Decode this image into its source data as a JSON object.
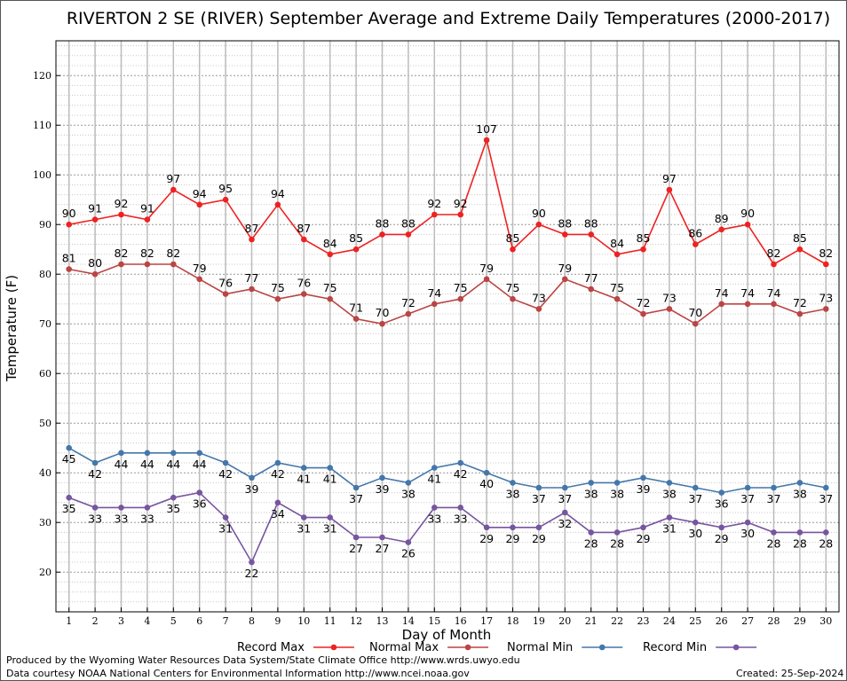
{
  "chart_data": {
    "type": "line",
    "title": "RIVERTON 2 SE (RIVER) September Average and Extreme Daily Temperatures (2000-2017)",
    "xlabel": "Day of Month",
    "ylabel": "Temperature (F)",
    "x": [
      1,
      2,
      3,
      4,
      5,
      6,
      7,
      8,
      9,
      10,
      11,
      12,
      13,
      14,
      15,
      16,
      17,
      18,
      19,
      20,
      21,
      22,
      23,
      24,
      25,
      26,
      27,
      28,
      29,
      30
    ],
    "xlim": [
      0.5,
      30.5
    ],
    "ylim": [
      12,
      127
    ],
    "yticks": [
      20,
      30,
      40,
      50,
      60,
      70,
      80,
      90,
      100,
      110,
      120
    ],
    "grid": true,
    "legend_position": "bottom",
    "series": [
      {
        "name": "Record Max",
        "color": "#ee2222",
        "label_pos": "above",
        "values": [
          90,
          91,
          92,
          91,
          97,
          94,
          95,
          87,
          94,
          87,
          84,
          85,
          88,
          88,
          92,
          92,
          107,
          85,
          90,
          88,
          88,
          84,
          85,
          97,
          86,
          89,
          90,
          82,
          85,
          82
        ]
      },
      {
        "name": "Normal Max",
        "color": "#bb4444",
        "label_pos": "above",
        "values": [
          81,
          80,
          82,
          82,
          82,
          79,
          76,
          77,
          75,
          76,
          75,
          71,
          70,
          72,
          74,
          75,
          79,
          75,
          73,
          79,
          77,
          75,
          72,
          73,
          70,
          74,
          74,
          74,
          72,
          73
        ]
      },
      {
        "name": "Normal Min",
        "color": "#4477aa",
        "label_pos": "below",
        "values": [
          45,
          42,
          44,
          44,
          44,
          44,
          42,
          39,
          42,
          41,
          41,
          37,
          39,
          38,
          41,
          42,
          40,
          38,
          37,
          37,
          38,
          38,
          39,
          38,
          37,
          36,
          37,
          37,
          38,
          37
        ]
      },
      {
        "name": "Record Min",
        "color": "#7755a0",
        "label_pos": "below",
        "values": [
          35,
          33,
          33,
          33,
          35,
          36,
          31,
          22,
          34,
          31,
          31,
          27,
          27,
          26,
          33,
          33,
          29,
          29,
          29,
          32,
          28,
          28,
          29,
          31,
          30,
          29,
          30,
          28,
          28,
          28
        ]
      }
    ]
  },
  "footer": {
    "produced_by": "Produced by the Wyoming Water Resources Data System/State Climate Office http://www.wrds.uwyo.edu",
    "courtesy": "Data courtesy NOAA National Centers for Environmental Information http://www.ncei.noaa.gov",
    "created": "Created:  25-Sep-2024"
  }
}
